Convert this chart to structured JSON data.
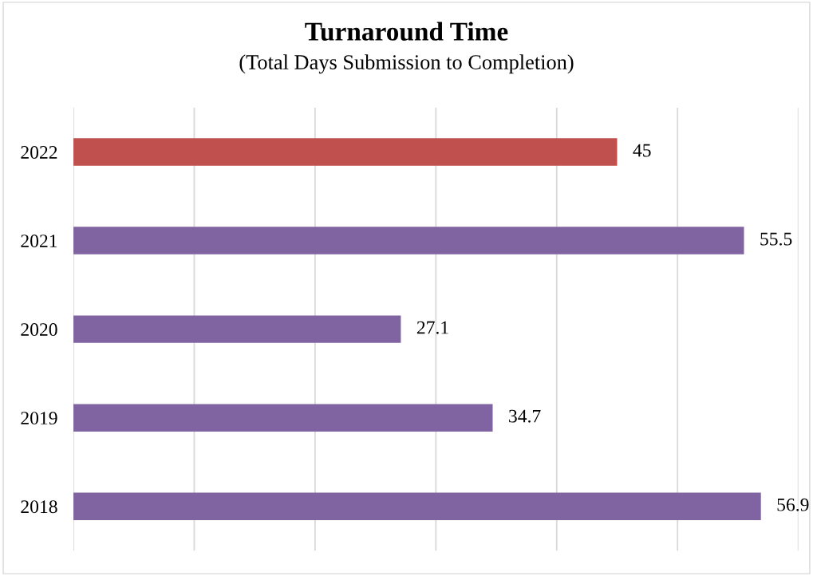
{
  "chart_data": {
    "type": "bar",
    "orientation": "horizontal",
    "title": "Turnaround Time",
    "subtitle": "(Total Days Submission to Completion)",
    "categories": [
      "2022",
      "2021",
      "2020",
      "2019",
      "2018"
    ],
    "values": [
      45,
      55.5,
      27.1,
      34.7,
      56.9
    ],
    "colors": [
      "#c0504d",
      "#8064a2",
      "#8064a2",
      "#8064a2",
      "#8064a2"
    ],
    "xlim": [
      0,
      60
    ],
    "xticks": [
      {
        "value": 0,
        "label": null
      },
      {
        "value": 10,
        "label": null
      },
      {
        "value": 20,
        "label": null
      },
      {
        "value": 30,
        "label": null
      },
      {
        "value": 40,
        "label": null
      },
      {
        "value": 50,
        "label": null
      },
      {
        "value": 60,
        "label": null
      }
    ],
    "grid": "x",
    "data_labels": true,
    "legend": false
  }
}
